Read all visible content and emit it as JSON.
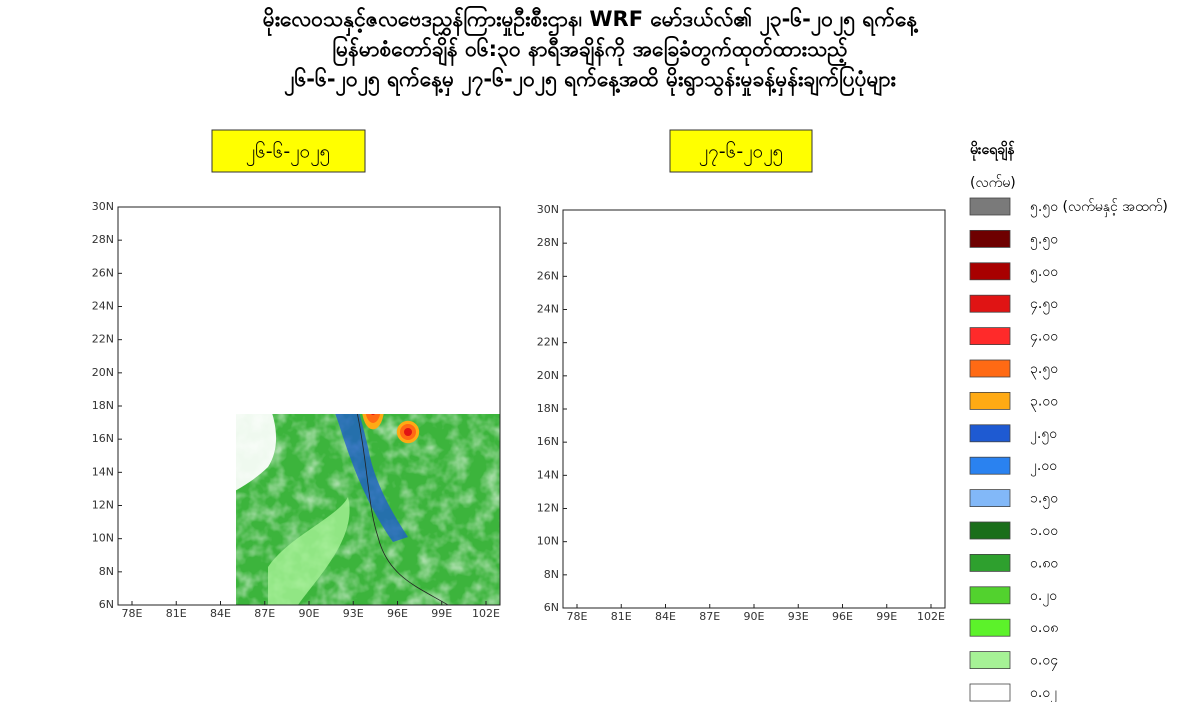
{
  "header": {
    "lines": [
      "မိုးလေဝသနှင့်ဇလဗေဒညွှန်ကြားမှုဦးစီးဌာန၊ WRF မော်ဒယ်လ်၏ ၂၃-၆-၂၀၂၅ ရက်နေ့",
      "မြန်မာစံတော်ချိန် ၀၆:၃၀ နာရီအချိန်ကို အခြေခံတွက်ထုတ်ထားသည့်",
      "၂၆-၆-၂၀၂၅ ရက်နေ့မှ ၂၇-၆-၂၀၂၅ ရက်နေ့အထိ မိုးရွာသွန်းမှုခန့်မှန်းချက်ပြပုံများ"
    ]
  },
  "maps": [
    {
      "label": "၂၆-၆-၂၀၂၅",
      "lat_labels": [
        "30N",
        "28N",
        "26N",
        "24N",
        "22N",
        "20N",
        "18N",
        "16N",
        "14N",
        "12N",
        "10N",
        "8N",
        "6N"
      ],
      "lon_labels": [
        "78E",
        "81E",
        "84E",
        "87E",
        "90E",
        "93E",
        "96E",
        "99E",
        "102E"
      ]
    },
    {
      "label": "၂၇-၆-၂၀၂၅",
      "lat_labels": [
        "30N",
        "28N",
        "26N",
        "24N",
        "22N",
        "20N",
        "18N",
        "16N",
        "14N",
        "12N",
        "10N",
        "8N",
        "6N"
      ],
      "lon_labels": [
        "78E",
        "81E",
        "84E",
        "87E",
        "90E",
        "93E",
        "96E",
        "99E",
        "102E"
      ]
    }
  ],
  "legend": {
    "title": "မိုးရေချိန်",
    "unit": "(လက်မ)",
    "items": [
      {
        "label": "၅.၅၀ (လက်မနှင့် အထက်)",
        "color": "#7a7a7a"
      },
      {
        "label": "၅.၅၀",
        "color": "#6e0000"
      },
      {
        "label": "၅.၀၀",
        "color": "#a80000"
      },
      {
        "label": "၄.၅၀",
        "color": "#e01414"
      },
      {
        "label": "၄.၀၀",
        "color": "#ff2a2a"
      },
      {
        "label": "၃.၅၀",
        "color": "#ff6a14"
      },
      {
        "label": "၃.၀၀",
        "color": "#ffaa14"
      },
      {
        "label": "၂.၅၀",
        "color": "#1e5ad2"
      },
      {
        "label": "၂.၀၀",
        "color": "#2a82f0"
      },
      {
        "label": "၁.၅၀",
        "color": "#82b8f8"
      },
      {
        "label": "၁.၀၀",
        "color": "#1a6e1a"
      },
      {
        "label": "၀.၈၀",
        "color": "#2ea02e"
      },
      {
        "label": "၀.၂၀",
        "color": "#52d22e"
      },
      {
        "label": "၀.၀၈",
        "color": "#5cf22a"
      },
      {
        "label": "၀.၀၄",
        "color": "#a6f296"
      },
      {
        "label": "၀.၀၂",
        "color": "#ffffff"
      }
    ]
  }
}
